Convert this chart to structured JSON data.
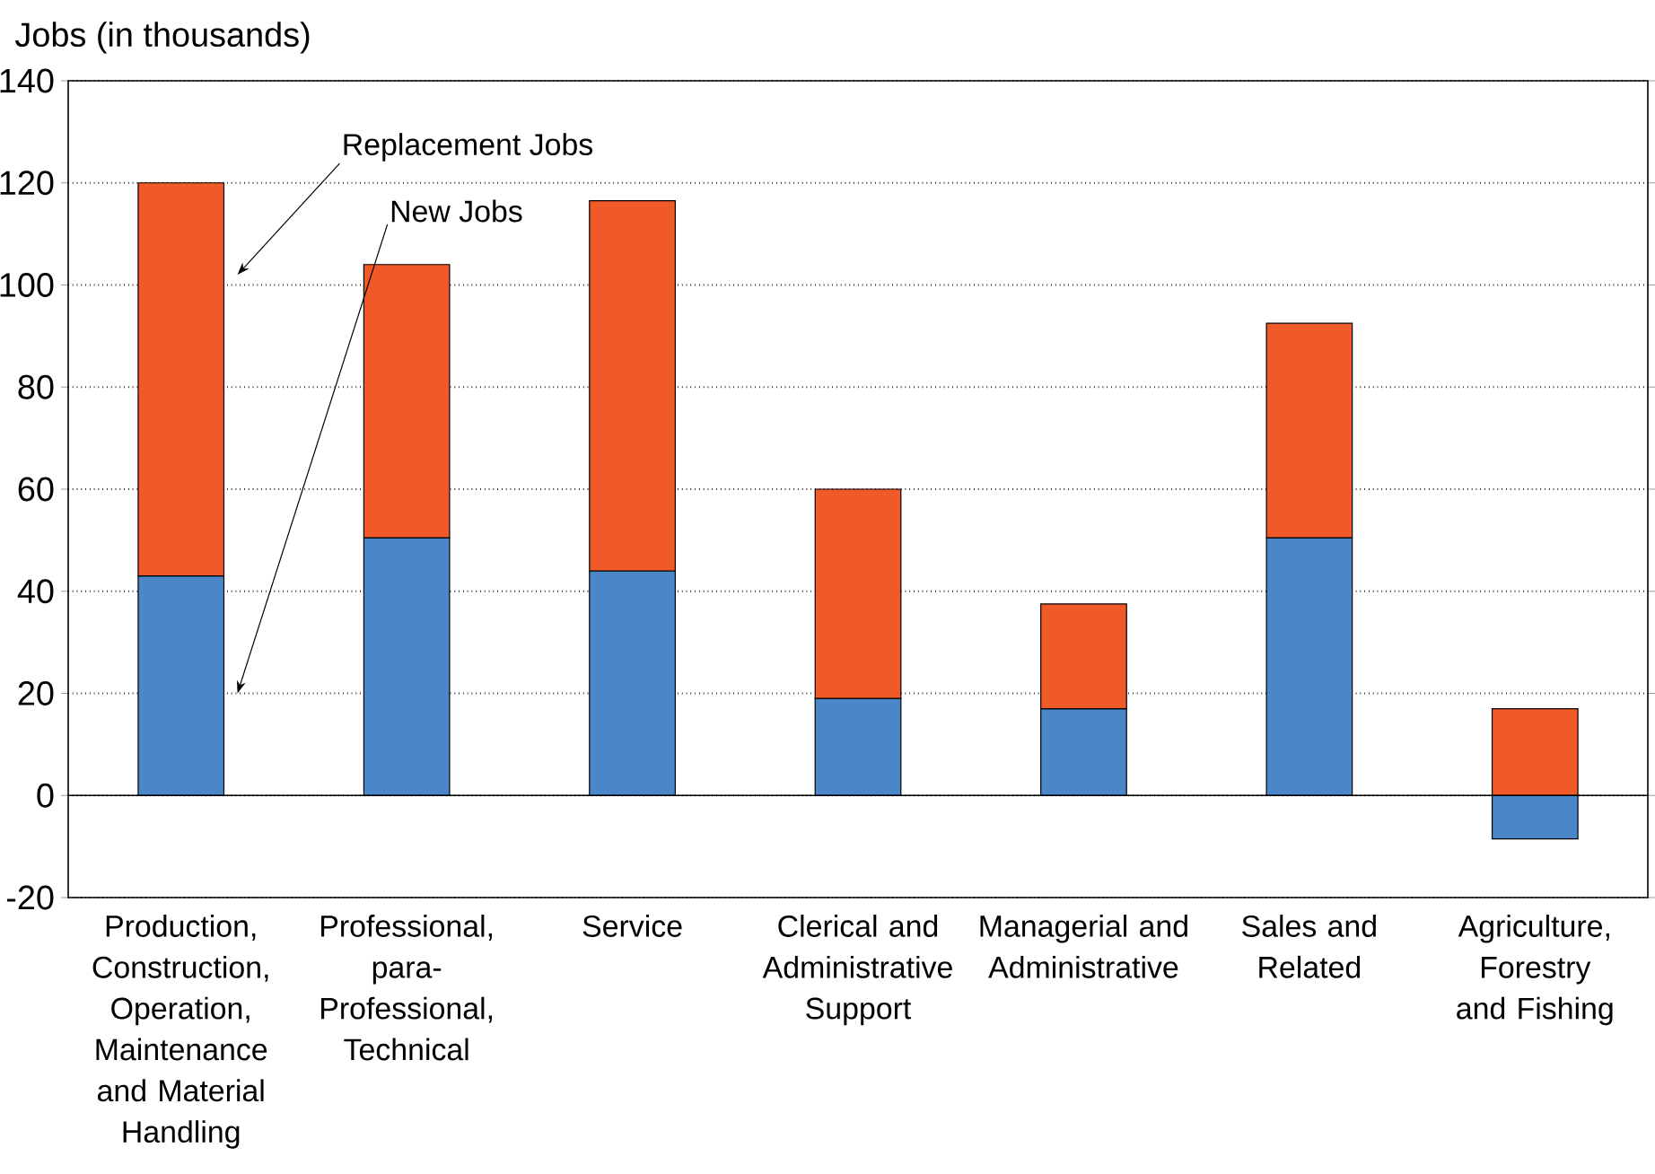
{
  "chart_data": {
    "type": "bar",
    "stacked": true,
    "ylabel": "Jobs (in thousands)",
    "categories": [
      "Production, Construction, Operation, Maintenance and Material Handling",
      "Professional, para-Professional, Technical",
      "Service",
      "Clerical and Administrative Support",
      "Managerial and Administrative",
      "Sales and Related",
      "Agriculture, Forestry and Fishing"
    ],
    "series": [
      {
        "color": "#4a86c8",
        "values": [
          43,
          50.5,
          44,
          19,
          17,
          50.5,
          -8.5
        ]
      },
      {
        "color": "#f05a28",
        "values": [
          77,
          53.5,
          72.5,
          41,
          20.5,
          42,
          17
        ]
      }
    ],
    "annotations": [
      "Replacement Jobs",
      "New Jobs"
    ],
    "ylim": [
      -20,
      140
    ],
    "yticks": [
      -20,
      0,
      20,
      40,
      60,
      80,
      100,
      120,
      140
    ],
    "grid": "y",
    "legend": false,
    "ref_lines": [
      {
        "axis": "y",
        "value": 0
      }
    ]
  }
}
